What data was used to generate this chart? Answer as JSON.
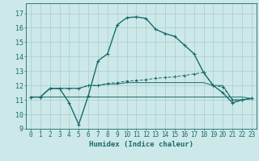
{
  "xlabel": "Humidex (Indice chaleur)",
  "xlim": [
    -0.5,
    23.5
  ],
  "ylim": [
    9,
    17.7
  ],
  "xticks": [
    0,
    1,
    2,
    3,
    4,
    5,
    6,
    7,
    8,
    9,
    10,
    11,
    12,
    13,
    14,
    15,
    16,
    17,
    18,
    19,
    20,
    21,
    22,
    23
  ],
  "yticks": [
    9,
    10,
    11,
    12,
    13,
    14,
    15,
    16,
    17
  ],
  "bg_color": "#cce8e8",
  "grid_color": "#aacccc",
  "line_color": "#1a6b6b",
  "line1_x": [
    0,
    1,
    2,
    3,
    4,
    5,
    6,
    7,
    8,
    9,
    10,
    11,
    12,
    13,
    14,
    15,
    16,
    17,
    18,
    19,
    20,
    21,
    22,
    23
  ],
  "line1_y": [
    11.2,
    11.2,
    11.8,
    11.8,
    10.8,
    9.3,
    11.3,
    13.7,
    14.2,
    16.2,
    16.7,
    16.75,
    16.65,
    15.9,
    15.6,
    15.4,
    14.8,
    14.2,
    12.9,
    12.0,
    11.5,
    10.8,
    11.0,
    11.1
  ],
  "line2_x": [
    0,
    1,
    2,
    3,
    4,
    5,
    6,
    7,
    8,
    9,
    10,
    11,
    12,
    13,
    14,
    15,
    16,
    17,
    18,
    19,
    20,
    21,
    22,
    23
  ],
  "line2_y": [
    11.2,
    11.2,
    11.8,
    11.8,
    11.8,
    11.8,
    12.0,
    12.0,
    12.15,
    12.2,
    12.3,
    12.35,
    12.4,
    12.5,
    12.55,
    12.6,
    12.7,
    12.8,
    12.9,
    12.0,
    11.9,
    11.0,
    11.0,
    11.1
  ],
  "line3_x": [
    0,
    1,
    2,
    3,
    4,
    5,
    6,
    7,
    8,
    9,
    10,
    11,
    12,
    13,
    14,
    15,
    16,
    17,
    18,
    19,
    20,
    21,
    22,
    23
  ],
  "line3_y": [
    11.2,
    11.2,
    11.2,
    11.2,
    11.2,
    11.2,
    11.2,
    11.2,
    11.2,
    11.2,
    11.2,
    11.2,
    11.2,
    11.2,
    11.2,
    11.2,
    11.2,
    11.2,
    11.2,
    11.2,
    11.2,
    11.2,
    11.2,
    11.1
  ],
  "line4_x": [
    0,
    1,
    2,
    3,
    4,
    5,
    6,
    7,
    8,
    9,
    10,
    11,
    12,
    13,
    14,
    15,
    16,
    17,
    18,
    19,
    20,
    21,
    22,
    23
  ],
  "line4_y": [
    11.2,
    11.2,
    11.8,
    11.8,
    11.8,
    11.8,
    12.0,
    12.0,
    12.1,
    12.1,
    12.2,
    12.2,
    12.2,
    12.2,
    12.2,
    12.2,
    12.2,
    12.2,
    12.2,
    12.0,
    12.0,
    11.0,
    11.0,
    11.1
  ],
  "lw1": 1.0,
  "lw2": 0.7,
  "lw3": 0.7,
  "lw4": 0.7
}
